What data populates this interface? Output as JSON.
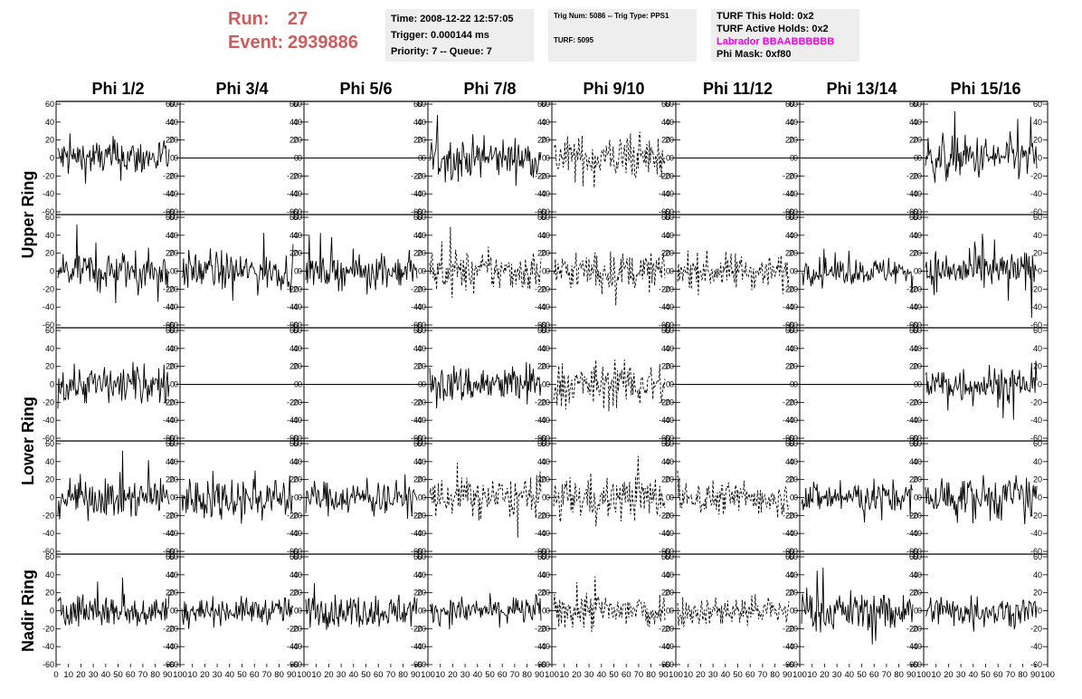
{
  "run": {
    "label": "Run:",
    "value": "27"
  },
  "event": {
    "label": "Event:",
    "value": "2939886"
  },
  "time_panel": {
    "time": "Time: 2008-12-22 12:57:05",
    "trigger": "Trigger: 0.000144 ms",
    "priority": "Priority: 7 -- Queue: 7"
  },
  "trig_panel": {
    "trig": "Trig Num: 5086 -- Trig Type: PPS1",
    "turf": "TURF: 5095"
  },
  "turf_panel": {
    "this_hold": "TURF This Hold: 0x2",
    "active_holds": "TURF Active Holds: 0x2",
    "labrador": "Labrador BBAABBBBBB",
    "phi_mask": "Phi Mask: 0xf80"
  },
  "colors": {
    "run_text": "#cd5c5c",
    "labrador_text": "#ee00ee",
    "trace": "#000000",
    "panel_bg": "#eeeeee"
  },
  "chart_data": {
    "type": "line",
    "columns": [
      "Phi 1/2",
      "Phi 3/4",
      "Phi 5/6",
      "Phi 7/8",
      "Phi 9/10",
      "Phi 11/12",
      "Phi 13/14",
      "Phi 15/16"
    ],
    "ring_labels": [
      "Upper Ring",
      "Lower Ring",
      "Nadir Ring"
    ],
    "rows_per_ring": [
      2,
      2,
      1
    ],
    "ylim": [
      -60,
      60
    ],
    "yticks": [
      -60,
      -40,
      -20,
      0,
      20,
      40,
      60
    ],
    "xlim": [
      0,
      100
    ],
    "xticks": [
      0,
      10,
      20,
      30,
      40,
      50,
      60,
      70,
      80,
      90,
      100
    ],
    "traces": [
      [
        {
          "style": "solid",
          "amp": 18
        },
        {
          "style": "flat",
          "amp": 0
        },
        {
          "style": "flat",
          "amp": 0
        },
        {
          "style": "solid",
          "amp": 18
        },
        {
          "style": "dashed",
          "amp": 20
        },
        {
          "style": "flat",
          "amp": 0
        },
        {
          "style": "flat",
          "amp": 0
        },
        {
          "style": "solid",
          "amp": 20
        }
      ],
      [
        {
          "style": "solid",
          "amp": 18
        },
        {
          "style": "solid",
          "amp": 17
        },
        {
          "style": "solid",
          "amp": 15
        },
        {
          "style": "dashed",
          "amp": 18
        },
        {
          "style": "dashed",
          "amp": 17
        },
        {
          "style": "dashed",
          "amp": 16
        },
        {
          "style": "solid",
          "amp": 12
        },
        {
          "style": "solid",
          "amp": 18
        }
      ],
      [
        {
          "style": "solid",
          "amp": 18
        },
        {
          "style": "flat",
          "amp": 0
        },
        {
          "style": "flat",
          "amp": 0
        },
        {
          "style": "solid",
          "amp": 18
        },
        {
          "style": "dashed",
          "amp": 20
        },
        {
          "style": "flat",
          "amp": 0
        },
        {
          "style": "flat",
          "amp": 0
        },
        {
          "style": "solid",
          "amp": 18
        }
      ],
      [
        {
          "style": "solid",
          "amp": 18
        },
        {
          "style": "solid",
          "amp": 20
        },
        {
          "style": "solid",
          "amp": 15
        },
        {
          "style": "dashed",
          "amp": 18
        },
        {
          "style": "dashed",
          "amp": 20
        },
        {
          "style": "dashed",
          "amp": 15
        },
        {
          "style": "solid",
          "amp": 15
        },
        {
          "style": "solid",
          "amp": 20
        }
      ],
      [
        {
          "style": "solid",
          "amp": 16
        },
        {
          "style": "solid",
          "amp": 12
        },
        {
          "style": "solid",
          "amp": 15
        },
        {
          "style": "solid",
          "amp": 12
        },
        {
          "style": "dashed",
          "amp": 18
        },
        {
          "style": "dashed",
          "amp": 14
        },
        {
          "style": "solid",
          "amp": 18
        },
        {
          "style": "solid",
          "amp": 14
        }
      ]
    ]
  }
}
